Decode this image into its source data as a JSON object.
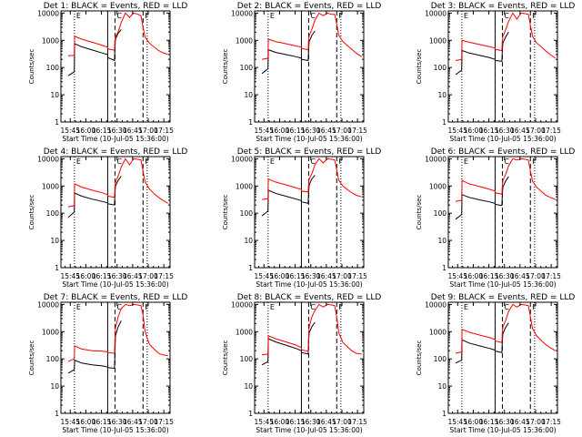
{
  "window": {
    "title": ""
  },
  "colors": {
    "events": "#000000",
    "lld": "#ff0000",
    "marker": "#000000",
    "background": "#ffffff"
  },
  "yaxis": {
    "label": "Counts/sec",
    "ticks": [
      "1",
      "10",
      "100",
      "1000",
      "10000"
    ],
    "scale": "log",
    "ylim": [
      1,
      12000
    ]
  },
  "xaxis": {
    "label": "Start Time (10-Jul-05 15:36:00)",
    "ticks": [
      "15:45",
      "16:00",
      "16:15",
      "16:30",
      "16:45",
      "17:00",
      "17:15"
    ],
    "range_minutes": [
      0,
      105
    ]
  },
  "markers": [
    {
      "letter": "E",
      "minute": 13,
      "style": "dotted"
    },
    {
      "letter": "",
      "minute": 45,
      "style": "solid"
    },
    {
      "letter": "C",
      "minute": 52,
      "style": "dashed"
    },
    {
      "letter": "F",
      "minute": 79,
      "style": "dashed"
    },
    {
      "letter": "",
      "minute": 83,
      "style": "dotted"
    }
  ],
  "chart_data": [
    {
      "type": "line",
      "title": "Det 1: BLACK = Events, RED = LLD",
      "xlabel": "Start Time (10-Jul-05 15:36:00)",
      "ylabel": "Counts/sec",
      "x_unit": "minutes after 15:36:00",
      "x": [
        7,
        12.9,
        13.2,
        20,
        30,
        40,
        44.8,
        45.5,
        51.5,
        52,
        52.5,
        55,
        58,
        62,
        66,
        70,
        74,
        77,
        79,
        81,
        85,
        90,
        94,
        98,
        103
      ],
      "series": [
        {
          "name": "Events",
          "color": "#000000",
          "segments": [
            [
              0,
              6
            ],
            [
              7,
              17
            ]
          ],
          "values": [
            50,
            70,
            750,
            580,
            440,
            340,
            300,
            230,
            180,
            600,
            1100,
            1800,
            2500,
            null,
            null,
            null,
            null,
            null,
            null,
            null,
            null,
            null,
            null,
            null,
            null
          ]
        },
        {
          "name": "LLD",
          "color": "#ff0000",
          "values": [
            270,
            280,
            1400,
            1100,
            850,
            650,
            560,
            480,
            430,
            1000,
            1400,
            2000,
            4500,
            10000,
            7000,
            10000,
            9000,
            8000,
            3000,
            1300,
            800,
            550,
            420,
            350,
            300
          ]
        }
      ]
    },
    {
      "type": "line",
      "title": "Det 2: BLACK = Events, RED = LLD",
      "xlabel": "Start Time (10-Jul-05 15:36:00)",
      "ylabel": "Counts/sec",
      "x_unit": "minutes after 15:36:00",
      "x": [
        7,
        12.9,
        13.2,
        20,
        30,
        40,
        44.8,
        45.5,
        51.5,
        52,
        52.5,
        55,
        58,
        62,
        66,
        70,
        74,
        77,
        79,
        81,
        85,
        90,
        94,
        98,
        103
      ],
      "series": [
        {
          "name": "Events",
          "color": "#000000",
          "segments": [
            [
              0,
              6
            ],
            [
              7,
              17
            ]
          ],
          "values": [
            60,
            90,
            450,
            360,
            300,
            250,
            220,
            200,
            180,
            500,
            900,
            1500,
            2200,
            null,
            null,
            null,
            null,
            null,
            null,
            null,
            null,
            null,
            null,
            null,
            null
          ]
        },
        {
          "name": "LLD",
          "color": "#ff0000",
          "values": [
            200,
            220,
            1100,
            900,
            750,
            620,
            560,
            500,
            450,
            1000,
            1500,
            2500,
            5500,
            10000,
            8000,
            10000,
            9000,
            9000,
            4000,
            1500,
            900,
            600,
            450,
            330,
            250
          ]
        }
      ]
    },
    {
      "type": "line",
      "title": "Det 3: BLACK = Events, RED = LLD",
      "xlabel": "Start Time (10-Jul-05 15:36:00)",
      "ylabel": "Counts/sec",
      "x_unit": "minutes after 15:36:00",
      "x": [
        7,
        12.9,
        13.2,
        20,
        30,
        40,
        44.8,
        45.5,
        51.5,
        52,
        52.5,
        55,
        58,
        62,
        66,
        70,
        74,
        77,
        79,
        81,
        85,
        90,
        94,
        98,
        103
      ],
      "series": [
        {
          "name": "Events",
          "color": "#000000",
          "segments": [
            [
              0,
              6
            ],
            [
              7,
              17
            ]
          ],
          "values": [
            55,
            80,
            420,
            340,
            280,
            230,
            200,
            180,
            170,
            450,
            800,
            1300,
            2000,
            null,
            null,
            null,
            null,
            null,
            null,
            null,
            null,
            null,
            null,
            null,
            null
          ]
        },
        {
          "name": "LLD",
          "color": "#ff0000",
          "values": [
            180,
            200,
            1000,
            850,
            700,
            580,
            520,
            460,
            420,
            900,
            1400,
            2400,
            5000,
            10000,
            6000,
            10000,
            9500,
            9000,
            3500,
            1400,
            800,
            550,
            400,
            300,
            220
          ]
        }
      ]
    },
    {
      "type": "line",
      "title": "Det 4: BLACK = Events, RED = LLD",
      "xlabel": "Start Time (10-Jul-05 15:36:00)",
      "ylabel": "Counts/sec",
      "x_unit": "minutes after 15:36:00",
      "x": [
        7,
        12.9,
        13.2,
        20,
        30,
        40,
        44.8,
        45.5,
        51.5,
        52,
        52.5,
        55,
        58,
        62,
        66,
        70,
        74,
        77,
        79,
        81,
        85,
        90,
        94,
        98,
        103
      ],
      "series": [
        {
          "name": "Events",
          "color": "#000000",
          "segments": [
            [
              0,
              6
            ],
            [
              7,
              17
            ]
          ],
          "values": [
            70,
            110,
            550,
            420,
            330,
            270,
            240,
            220,
            200,
            550,
            1000,
            1600,
            2300,
            null,
            null,
            null,
            null,
            null,
            null,
            null,
            null,
            null,
            null,
            null,
            null
          ]
        },
        {
          "name": "LLD",
          "color": "#ff0000",
          "values": [
            170,
            190,
            1200,
            900,
            700,
            560,
            480,
            420,
            380,
            900,
            1400,
            2300,
            5000,
            10000,
            6000,
            10000,
            9500,
            9000,
            3500,
            1400,
            800,
            500,
            380,
            300,
            230
          ]
        }
      ]
    },
    {
      "type": "line",
      "title": "Det 5: BLACK = Events, RED = LLD",
      "xlabel": "Start Time (10-Jul-05 15:36:00)",
      "ylabel": "Counts/sec",
      "x_unit": "minutes after 15:36:00",
      "x": [
        7,
        12.9,
        13.2,
        20,
        30,
        40,
        44.8,
        45.5,
        51.5,
        52,
        52.5,
        55,
        58,
        62,
        66,
        70,
        74,
        77,
        79,
        81,
        85,
        90,
        94,
        98,
        103
      ],
      "series": [
        {
          "name": "Events",
          "color": "#000000",
          "segments": [
            [
              0,
              6
            ],
            [
              7,
              17
            ]
          ],
          "values": [
            80,
            120,
            700,
            540,
            420,
            330,
            290,
            260,
            230,
            600,
            1100,
            1800,
            2500,
            null,
            null,
            null,
            null,
            null,
            null,
            null,
            null,
            null,
            null,
            null,
            null
          ]
        },
        {
          "name": "LLD",
          "color": "#ff0000",
          "values": [
            320,
            340,
            1800,
            1400,
            1100,
            850,
            750,
            650,
            600,
            1200,
            1800,
            2800,
            6000,
            10000,
            7000,
            10000,
            9500,
            9000,
            4000,
            1600,
            1000,
            700,
            550,
            450,
            400
          ]
        }
      ]
    },
    {
      "type": "line",
      "title": "Det 6: BLACK = Events, RED = LLD",
      "xlabel": "Start Time (10-Jul-05 15:36:00)",
      "ylabel": "Counts/sec",
      "x_unit": "minutes after 15:36:00",
      "x": [
        7,
        12.9,
        13.2,
        20,
        30,
        40,
        44.8,
        45.5,
        51.5,
        52,
        52.5,
        55,
        58,
        62,
        66,
        70,
        74,
        77,
        79,
        81,
        85,
        90,
        94,
        98,
        103
      ],
      "series": [
        {
          "name": "Events",
          "color": "#000000",
          "segments": [
            [
              0,
              6
            ],
            [
              7,
              17
            ]
          ],
          "values": [
            60,
            90,
            480,
            380,
            310,
            260,
            230,
            210,
            190,
            500,
            900,
            1500,
            2200,
            null,
            null,
            null,
            null,
            null,
            null,
            null,
            null,
            null,
            null,
            null,
            null
          ]
        },
        {
          "name": "LLD",
          "color": "#ff0000",
          "values": [
            270,
            300,
            1600,
            1200,
            950,
            750,
            650,
            560,
            500,
            1000,
            1600,
            2600,
            5500,
            10000,
            9000,
            10000,
            9500,
            9000,
            3500,
            1500,
            900,
            600,
            450,
            380,
            320
          ]
        }
      ]
    },
    {
      "type": "line",
      "title": "Det 7: BLACK = Events, RED = LLD",
      "xlabel": "Start Time (10-Jul-05 15:36:00)",
      "ylabel": "Counts/sec",
      "x_unit": "minutes after 15:36:00",
      "x": [
        7,
        12.9,
        13.2,
        20,
        30,
        40,
        44.8,
        45.5,
        51.5,
        52,
        52.5,
        55,
        58,
        62,
        66,
        70,
        74,
        77,
        79,
        81,
        85,
        90,
        94,
        98,
        103
      ],
      "series": [
        {
          "name": "Events",
          "color": "#000000",
          "segments": [
            [
              0,
              6
            ],
            [
              7,
              17
            ]
          ],
          "values": [
            30,
            40,
            90,
            70,
            60,
            55,
            50,
            48,
            45,
            200,
            700,
            1500,
            2500,
            null,
            null,
            null,
            null,
            null,
            null,
            null,
            null,
            null,
            null,
            null,
            null
          ]
        },
        {
          "name": "LLD",
          "color": "#ff0000",
          "values": [
            80,
            100,
            300,
            230,
            200,
            190,
            180,
            170,
            160,
            500,
            1400,
            3500,
            7000,
            10000,
            9000,
            10000,
            9500,
            9000,
            4000,
            1000,
            350,
            220,
            160,
            140,
            130
          ]
        }
      ]
    },
    {
      "type": "line",
      "title": "Det 8: BLACK = Events, RED = LLD",
      "xlabel": "Start Time (10-Jul-05 15:36:00)",
      "ylabel": "Counts/sec",
      "x_unit": "minutes after 15:36:00",
      "x": [
        7,
        12.9,
        13.2,
        20,
        30,
        40,
        44.8,
        45.5,
        51.5,
        52,
        52.5,
        55,
        58,
        62,
        66,
        70,
        74,
        77,
        79,
        81,
        85,
        90,
        94,
        98,
        103
      ],
      "series": [
        {
          "name": "Events",
          "color": "#000000",
          "segments": [
            [
              0,
              6
            ],
            [
              7,
              17
            ]
          ],
          "values": [
            60,
            80,
            550,
            420,
            320,
            240,
            200,
            170,
            150,
            450,
            900,
            1500,
            2200,
            null,
            null,
            null,
            null,
            null,
            null,
            null,
            null,
            null,
            null,
            null,
            null
          ]
        },
        {
          "name": "LLD",
          "color": "#ff0000",
          "values": [
            140,
            150,
            700,
            550,
            420,
            320,
            260,
            210,
            190,
            600,
            1500,
            3500,
            6000,
            10000,
            8000,
            10000,
            9500,
            9000,
            3500,
            900,
            400,
            260,
            190,
            160,
            150
          ]
        }
      ]
    },
    {
      "type": "line",
      "title": "Det 9: BLACK = Events, RED = LLD",
      "xlabel": "Start Time (10-Jul-05 15:36:00)",
      "ylabel": "Counts/sec",
      "x_unit": "minutes after 15:36:00",
      "x": [
        7,
        12.9,
        13.2,
        20,
        30,
        40,
        44.8,
        45.5,
        51.5,
        52,
        52.5,
        55,
        58,
        62,
        66,
        70,
        74,
        77,
        79,
        81,
        85,
        90,
        94,
        98,
        103
      ],
      "series": [
        {
          "name": "Events",
          "color": "#000000",
          "segments": [
            [
              0,
              6
            ],
            [
              7,
              17
            ]
          ],
          "values": [
            70,
            90,
            500,
            380,
            300,
            240,
            210,
            190,
            170,
            450,
            850,
            1400,
            2100,
            null,
            null,
            null,
            null,
            null,
            null,
            null,
            null,
            null,
            null,
            null,
            null
          ]
        },
        {
          "name": "LLD",
          "color": "#ff0000",
          "values": [
            160,
            180,
            1200,
            950,
            750,
            600,
            520,
            450,
            400,
            900,
            1500,
            2500,
            5500,
            10000,
            8000,
            10000,
            9500,
            9000,
            3500,
            1300,
            700,
            450,
            330,
            260,
            200
          ]
        }
      ]
    }
  ]
}
